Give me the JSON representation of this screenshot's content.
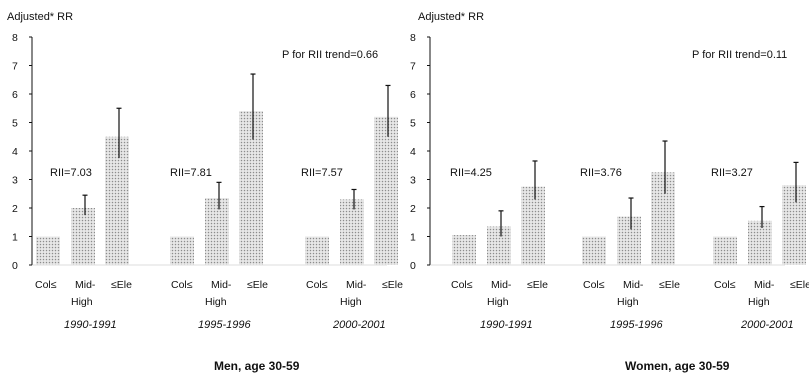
{
  "chart_data": [
    {
      "type": "bar",
      "title": "Men, age 30-59",
      "ylabel": "Adjusted* RR",
      "ylim": [
        0,
        8
      ],
      "yticks": [
        0,
        1,
        2,
        3,
        4,
        5,
        6,
        7,
        8
      ],
      "annotation": "P for RII trend=0.66",
      "category_labels": [
        "Col≤",
        "Mid-",
        "≤Ele",
        "High"
      ],
      "groups": [
        {
          "period": "1990-1991",
          "rii": "RII=7.03",
          "values": [
            1.0,
            2.0,
            4.5
          ],
          "err_low": [
            1.0,
            1.75,
            3.75
          ],
          "err_high": [
            1.0,
            2.45,
            5.5
          ]
        },
        {
          "period": "1995-1996",
          "rii": "RII=7.81",
          "values": [
            1.0,
            2.35,
            5.4
          ],
          "err_low": [
            1.0,
            1.95,
            4.4
          ],
          "err_high": [
            1.0,
            2.9,
            6.7
          ]
        },
        {
          "period": "2000-2001",
          "rii": "RII=7.57",
          "values": [
            1.0,
            2.3,
            5.2
          ],
          "err_low": [
            1.0,
            1.95,
            4.5
          ],
          "err_high": [
            1.0,
            2.65,
            6.3
          ]
        }
      ]
    },
    {
      "type": "bar",
      "title": "Women, age 30-59",
      "ylabel": "Adjusted* RR",
      "ylim": [
        0,
        8
      ],
      "yticks": [
        0,
        1,
        2,
        3,
        4,
        5,
        6,
        7,
        8
      ],
      "annotation": "P for RII trend=0.11",
      "category_labels": [
        "Col≤",
        "Mid-",
        "≤Ele",
        "High"
      ],
      "groups": [
        {
          "period": "1990-1991",
          "rii": "RII=4.25",
          "values": [
            1.05,
            1.35,
            2.75
          ],
          "err_low": [
            1.05,
            1.0,
            2.3
          ],
          "err_high": [
            1.05,
            1.9,
            3.65
          ]
        },
        {
          "period": "1995-1996",
          "rii": "RII=3.76",
          "values": [
            1.0,
            1.7,
            3.25
          ],
          "err_low": [
            1.0,
            1.25,
            2.5
          ],
          "err_high": [
            1.0,
            2.35,
            4.35
          ]
        },
        {
          "period": "2000-2001",
          "rii": "RII=3.27",
          "values": [
            1.0,
            1.55,
            2.8
          ],
          "err_low": [
            1.0,
            1.3,
            2.2
          ],
          "err_high": [
            1.0,
            2.05,
            3.6
          ]
        }
      ]
    }
  ],
  "colors": {
    "bar_fill": "#e7e7e7",
    "bar_dot": "#8c8c8c",
    "ink": "#111111"
  }
}
